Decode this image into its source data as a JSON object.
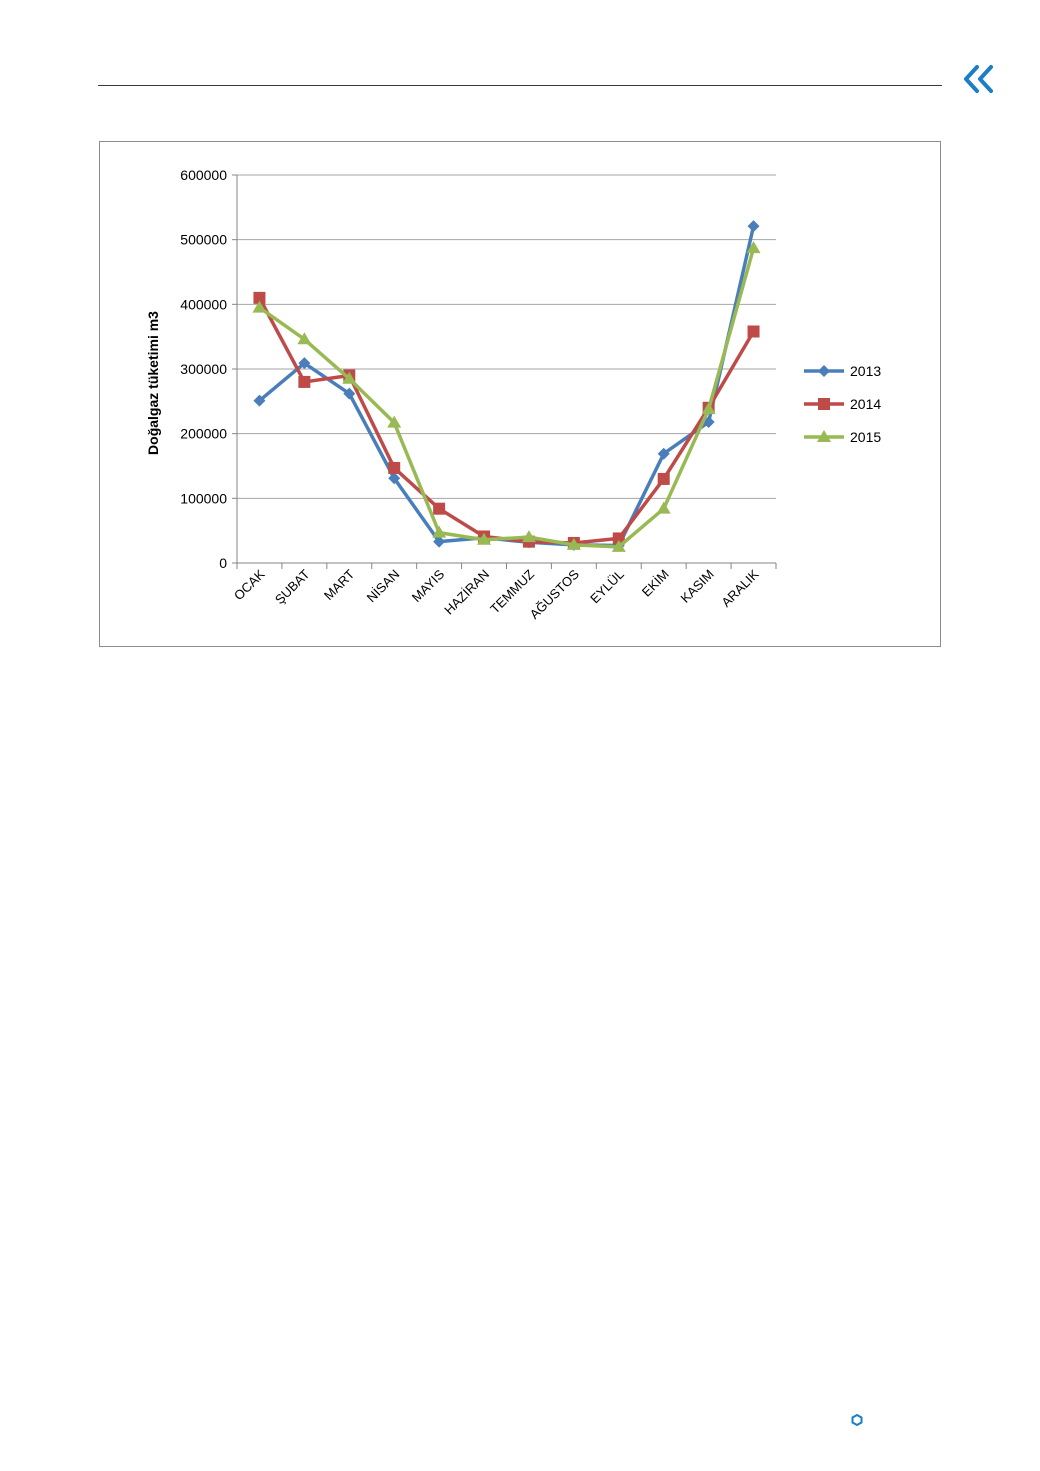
{
  "page": {
    "icons": {
      "back": "double-chevron-left-icon",
      "marker": "hexagon-outline-icon"
    },
    "accent_color": "#1a7fc4"
  },
  "chart_data": {
    "type": "line",
    "title": "",
    "xlabel": "",
    "ylabel": "Doğalgaz tüketimi m3",
    "ylim": [
      0,
      600000
    ],
    "yticks": [
      0,
      100000,
      200000,
      300000,
      400000,
      500000,
      600000
    ],
    "ytick_labels": [
      "0",
      "100000",
      "200000",
      "300000",
      "400000",
      "500000",
      "600000"
    ],
    "grid": true,
    "legend_position": "right",
    "categories": [
      "OCAK",
      "ŞUBAT",
      "MART",
      "NİSAN",
      "MAYIS",
      "HAZİRAN",
      "TEMMUZ",
      "AĞUSTOS",
      "EYLÜL",
      "EKİM",
      "KASIM",
      "ARALIK"
    ],
    "series": [
      {
        "name": "2013",
        "color": "#4a7ebb",
        "marker": "diamond",
        "values": [
          251000,
          309000,
          262000,
          131000,
          33000,
          39000,
          32000,
          28000,
          27000,
          169000,
          218000,
          521000
        ]
      },
      {
        "name": "2014",
        "color": "#be4b48",
        "marker": "square",
        "values": [
          410000,
          280000,
          290000,
          147000,
          84000,
          41000,
          33000,
          31000,
          38000,
          130000,
          240000,
          358000
        ]
      },
      {
        "name": "2015",
        "color": "#98b954",
        "marker": "triangle",
        "values": [
          395000,
          346000,
          285000,
          217000,
          47000,
          36000,
          40000,
          28000,
          25000,
          84000,
          238000,
          487000
        ]
      }
    ]
  }
}
